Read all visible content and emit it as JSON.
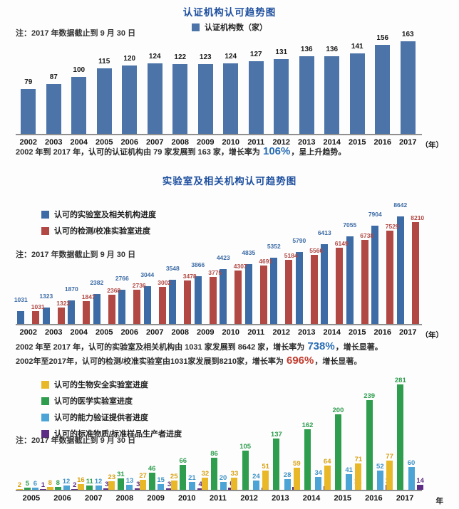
{
  "page": {
    "background": "#fdfdfd",
    "title_color": "#1d4f9e"
  },
  "charts": [
    {
      "key": "certification-bodies-trend",
      "title": "认证机构认可趋势图",
      "note": "注：2017 年数据截止到 9 月 30 日",
      "unit_label": "（年）",
      "legend": [
        {
          "key": "certification-bodies",
          "label": "认证机构数（家）",
          "color": "#4c74a8"
        }
      ],
      "chart_data": {
        "type": "bar",
        "categories": [
          "2002",
          "2003",
          "2004",
          "2005",
          "2006",
          "2007",
          "2008",
          "2009",
          "2010",
          "2011",
          "2012",
          "2013",
          "2014",
          "2015",
          "2016",
          "2017"
        ],
        "series": [
          {
            "key": "certification-bodies",
            "name": "认证机构数（家）",
            "color": "#4c74a8",
            "label_color": "#1a1a1a",
            "values": [
              79,
              87,
              100,
              115,
              120,
              124,
              122,
              123,
              124,
              127,
              131,
              136,
              136,
              141,
              156,
              163
            ]
          }
        ],
        "xlabel": "年",
        "ylabel": "",
        "ylim": [
          0,
          170
        ],
        "grid": false,
        "legend_position": "top-center"
      },
      "annotations": [
        {
          "prefix": "2002 年到 2017 年，认可的认证机构由 79 家发展到 163 家，增长率为 ",
          "highlight": "106%",
          "highlight_color": "#2a6db5",
          "suffix": "，呈上升趋势。"
        }
      ]
    },
    {
      "key": "laboratories-trend",
      "title": "实验室及相关机构认可趋势图",
      "note": "注：2017 年数据截止到 9 月 30 日",
      "unit_label": "（年）",
      "legend": [
        {
          "key": "accredited-labs",
          "label": "认可的实验室及相关机构进度",
          "color": "#3c6ba5"
        },
        {
          "key": "testing-calibration-labs",
          "label": "认可的检测/校准实验室进度",
          "color": "#b14843"
        }
      ],
      "chart_data": {
        "type": "bar",
        "categories": [
          "2002",
          "2003",
          "2004",
          "2005",
          "2006",
          "2007",
          "2008",
          "2009",
          "2010",
          "2011",
          "2012",
          "2013",
          "2014",
          "2015",
          "2016",
          "2017"
        ],
        "series": [
          {
            "key": "accredited-labs",
            "name": "认可的实验室及相关机构进度",
            "color": "#3c6ba5",
            "label_color": "#3c6ba5",
            "values": [
              1031,
              1323,
              1870,
              2382,
              2766,
              3044,
              3548,
              3866,
              4423,
              4835,
              5352,
              5790,
              6413,
              7055,
              7904,
              8642
            ]
          },
          {
            "key": "testing-calibration-labs",
            "name": "认可的检测/校准实验室进度",
            "color": "#b14843",
            "label_color": "#b14843",
            "values": [
              1031,
              1323,
              1847,
              2368,
              2736,
              3002,
              3478,
              3775,
              4307,
              4691,
              5184,
              5566,
              6149,
              6738,
              7529,
              8210
            ]
          }
        ],
        "xlabel": "年",
        "ylabel": "",
        "ylim": [
          0,
          9000
        ],
        "grid": false,
        "legend_position": "left"
      },
      "annotations": [
        {
          "prefix": "2002 年至 2017 年，认可的实验室及相关机构由 1031 家发展到 8642 家，增长率为 ",
          "highlight": "738%",
          "highlight_color": "#2a6db5",
          "suffix": "，增长显著。"
        },
        {
          "prefix": "2002年至2017年，认可的检测/校准实验室由1031家发展到8210家，增长率为 ",
          "highlight": "696%",
          "highlight_color": "#c23b2e",
          "suffix": "，增长显著。"
        }
      ]
    },
    {
      "key": "special-programs-trend",
      "title": "",
      "note": "注：2017 年数据截止到 9 月 30 日",
      "unit_label": "年",
      "legend": [
        {
          "key": "biosafety-labs",
          "label": "认可的生物安全实验室进度",
          "color": "#e9b829"
        },
        {
          "key": "medical-labs",
          "label": "认可的医学实验室进度",
          "color": "#2e9e4e"
        },
        {
          "key": "pt-providers",
          "label": "认可的能力验证提供者进度",
          "color": "#4ca3d5"
        },
        {
          "key": "rm-producers",
          "label": "认可的标准物质/标准样品生产者进度",
          "color": "#5d2c85"
        }
      ],
      "chart_data": {
        "type": "bar",
        "categories": [
          "2005",
          "2006",
          "2007",
          "2008",
          "2009",
          "2010",
          "2011",
          "2012",
          "2013",
          "2014",
          "2015",
          "2016",
          "2017"
        ],
        "series": [
          {
            "key": "biosafety-labs",
            "name": "认可的生物安全实验室进度",
            "color": "#e9b829",
            "label_color": "#d8a112",
            "values": [
              2,
              8,
              16,
              23,
              27,
              25,
              32,
              33,
              51,
              59,
              64,
              71,
              77
            ]
          },
          {
            "key": "medical-labs",
            "name": "认可的医学实验室进度",
            "color": "#2e9e4e",
            "label_color": "#2e9e4e",
            "values": [
              5,
              8,
              11,
              31,
              46,
              66,
              86,
              105,
              137,
              162,
              200,
              239,
              281
            ]
          },
          {
            "key": "pt-providers",
            "name": "认可的能力验证提供者进度",
            "color": "#4ca3d5",
            "label_color": "#3f93c6",
            "values": [
              6,
              12,
              12,
              13,
              15,
              21,
              20,
              24,
              28,
              34,
              41,
              52,
              60
            ]
          },
          {
            "key": "rm-producers",
            "name": "认可的标准物质/标准样品生产者进度",
            "color": "#5d2c85",
            "label_color": "#5d2c85",
            "values": [
              1,
              2,
              3,
              3,
              3,
              4,
              6,
              6,
              8,
              9,
              12,
              13,
              14
            ]
          }
        ],
        "xlabel": "年",
        "ylabel": "",
        "ylim": [
          0,
          290
        ],
        "grid": false,
        "legend_position": "top-left"
      },
      "annotations": []
    }
  ]
}
